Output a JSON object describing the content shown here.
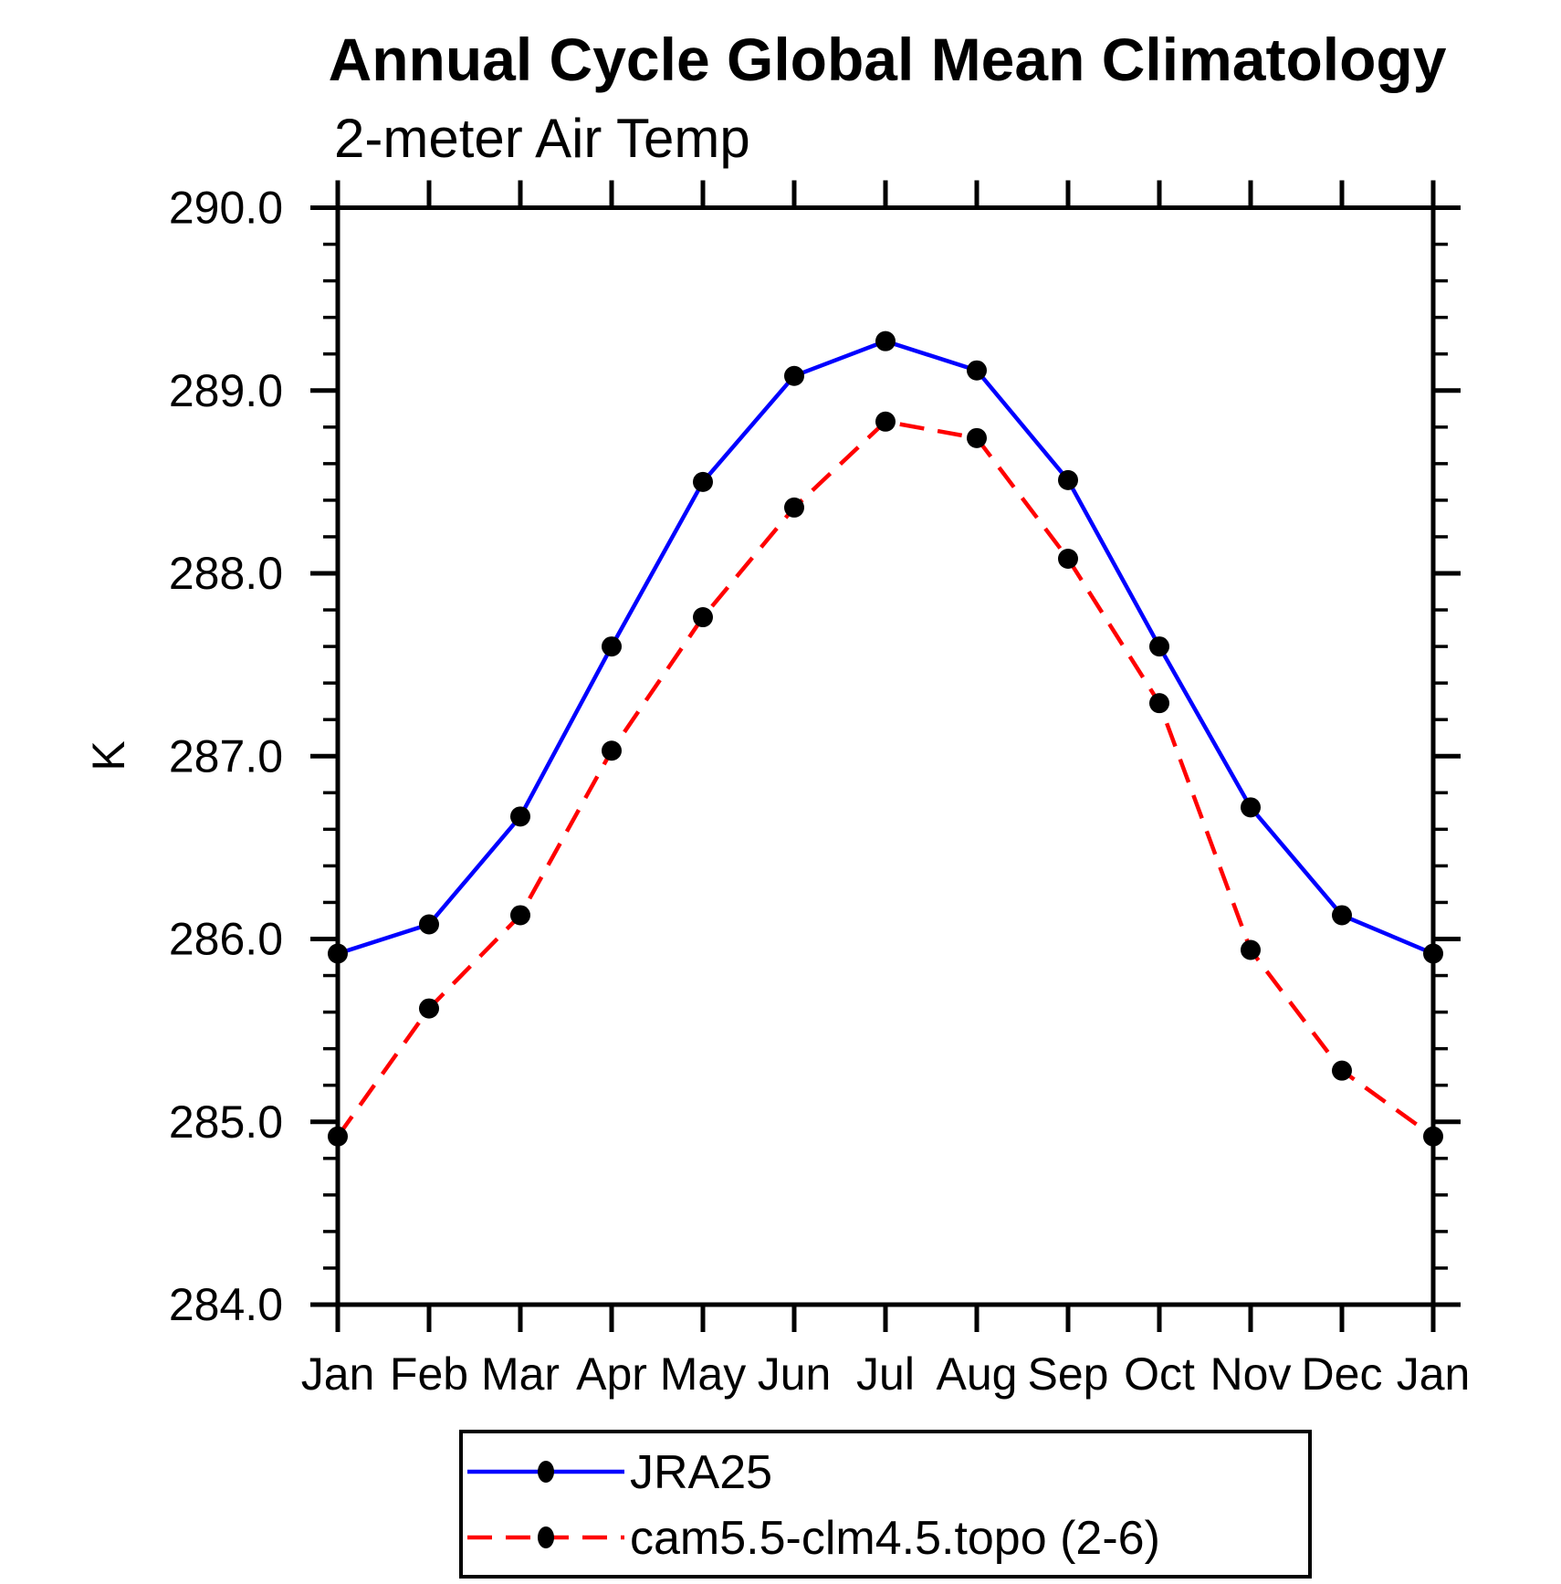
{
  "title": "Annual Cycle Global Mean Climatology",
  "subtitle": "2-meter Air Temp",
  "y_axis_label": "K",
  "colors": {
    "jra25_line": "#0000ff",
    "cam_line": "#ff0000",
    "marker": "#000000",
    "axis": "#000000",
    "background": "#ffffff"
  },
  "chart_data": {
    "type": "line",
    "title": "Annual Cycle Global Mean Climatology",
    "subtitle": "2-meter Air Temp",
    "xlabel": "",
    "ylabel": "K",
    "categories": [
      "Jan",
      "Feb",
      "Mar",
      "Apr",
      "May",
      "Jun",
      "Jul",
      "Aug",
      "Sep",
      "Oct",
      "Nov",
      "Dec",
      "Jan"
    ],
    "ylim": [
      284.0,
      290.0
    ],
    "ytick_interval": 1.0,
    "yminor_interval": 0.2,
    "ytick_labels": [
      "290.0",
      "289.0",
      "288.0",
      "287.0",
      "286.0",
      "285.0",
      "284.0"
    ],
    "grid": false,
    "legend_position": "bottom-center",
    "series": [
      {
        "name": "JRA25",
        "color": "#0000ff",
        "line_style": "solid",
        "marker": "filled-black-circle",
        "values": [
          285.92,
          286.08,
          286.67,
          287.6,
          288.5,
          289.08,
          289.27,
          289.11,
          288.51,
          287.6,
          286.72,
          286.13,
          285.92
        ]
      },
      {
        "name": "cam5.5-clm4.5.topo (2-6)",
        "color": "#ff0000",
        "line_style": "dashed",
        "marker": "filled-black-circle",
        "values": [
          284.92,
          285.62,
          286.13,
          287.03,
          287.76,
          288.36,
          288.83,
          288.74,
          288.08,
          287.29,
          285.94,
          285.28,
          284.92
        ]
      }
    ]
  }
}
